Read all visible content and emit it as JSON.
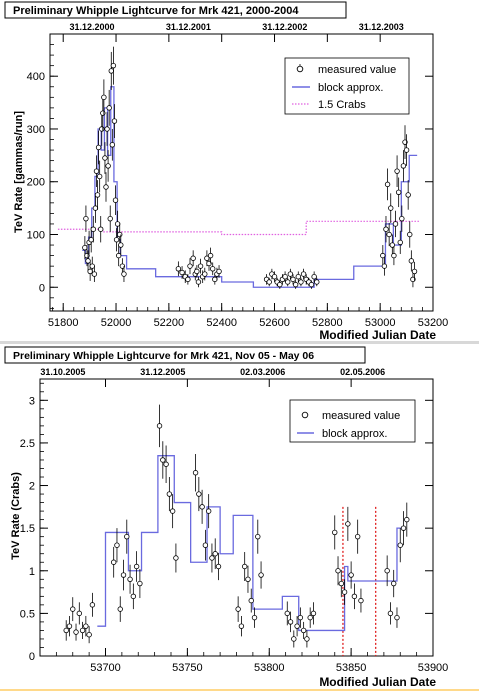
{
  "charts": [
    {
      "title": "Preliminary Whipple Lightcurve for Mrk 421, 2000-2004",
      "top_dates": [
        "31.12.2000",
        "31.12.2001",
        "31.12.2002",
        "31.12.2003"
      ]
    },
    {
      "title": "Preliminary Whipple Lightcurve for Mrk 421, Nov 05 - May 06",
      "top_dates": [
        "31.10.2005",
        "31.12.2005",
        "02.03.2006",
        "02.05.2006"
      ]
    }
  ],
  "chart_data": [
    {
      "type": "scatter",
      "title": "Preliminary Whipple Lightcurve for Mrk 421, 2000-2004",
      "xlabel": "Modified Julian Date",
      "ylabel": "TeV Rate [gammas/run]",
      "xlim": [
        51750,
        53200
      ],
      "ylim": [
        -45,
        480
      ],
      "xticks": [
        51800,
        52000,
        52200,
        52400,
        52600,
        52800,
        53000,
        53200
      ],
      "yticks": [
        0,
        100,
        200,
        300,
        400
      ],
      "top_date_mjd": [
        51909,
        52274,
        52639,
        53004
      ],
      "legend": [
        "measured value",
        "block approx.",
        "1.5 Crabs"
      ],
      "legend_position": "top-right",
      "series": [
        {
          "name": "measured value",
          "kind": "points",
          "x": [
            51882,
            51886,
            51890,
            51894,
            51898,
            51902,
            51906,
            51910,
            51914,
            51918,
            51922,
            51926,
            51930,
            51934,
            51938,
            51942,
            51946,
            51950,
            51954,
            51958,
            51962,
            51966,
            51970,
            51974,
            51978,
            51982,
            51986,
            51990,
            51994,
            51998,
            52002,
            52006,
            52010,
            52014,
            52018,
            52024,
            52030,
            52236,
            52250,
            52262,
            52272,
            52280,
            52292,
            52300,
            52306,
            52312,
            52320,
            52328,
            52336,
            52344,
            52352,
            52358,
            52366,
            52374,
            52382,
            52390,
            52570,
            52580,
            52590,
            52600,
            52610,
            52620,
            52630,
            52640,
            52650,
            52660,
            52670,
            52680,
            52690,
            52700,
            52710,
            52720,
            52730,
            52740,
            52750,
            52760,
            53010,
            53016,
            53022,
            53028,
            53034,
            53040,
            53046,
            53052,
            53058,
            53064,
            53070,
            53076,
            53082,
            53088,
            53094,
            53100,
            53106,
            53112,
            53118,
            53124,
            53130
          ],
          "y": [
            75,
            130,
            60,
            50,
            85,
            30,
            90,
            40,
            110,
            25,
            150,
            220,
            175,
            265,
            210,
            110,
            300,
            330,
            360,
            245,
            190,
            300,
            230,
            340,
            130,
            410,
            270,
            420,
            315,
            165,
            90,
            120,
            60,
            100,
            80,
            40,
            25,
            35,
            28,
            20,
            15,
            40,
            55,
            25,
            30,
            10,
            40,
            20,
            25,
            55,
            45,
            60,
            35,
            15,
            25,
            30,
            15,
            10,
            25,
            20,
            10,
            5,
            15,
            20,
            10,
            25,
            15,
            5,
            20,
            10,
            25,
            15,
            10,
            5,
            20,
            10,
            60,
            40,
            110,
            195,
            100,
            150,
            80,
            60,
            120,
            220,
            180,
            85,
            130,
            230,
            275,
            260,
            175,
            100,
            50,
            15,
            30
          ],
          "err": [
            22,
            25,
            20,
            20,
            22,
            18,
            24,
            18,
            25,
            15,
            28,
            30,
            28,
            32,
            30,
            25,
            32,
            34,
            34,
            30,
            28,
            32,
            30,
            34,
            25,
            36,
            30,
            36,
            32,
            28,
            22,
            25,
            20,
            22,
            20,
            15,
            15,
            14,
            12,
            12,
            10,
            15,
            15,
            12,
            12,
            10,
            14,
            12,
            12,
            15,
            14,
            15,
            12,
            10,
            12,
            12,
            10,
            8,
            10,
            10,
            8,
            8,
            10,
            10,
            8,
            10,
            10,
            8,
            10,
            8,
            10,
            10,
            8,
            8,
            10,
            8,
            20,
            18,
            25,
            30,
            22,
            28,
            20,
            18,
            25,
            30,
            28,
            22,
            25,
            30,
            32,
            30,
            28,
            25,
            20,
            15,
            18
          ]
        },
        {
          "name": "block approx.",
          "kind": "step",
          "x": [
            51872,
            51884,
            51896,
            51908,
            51920,
            51932,
            51944,
            51956,
            51968,
            51980,
            51992,
            52004,
            52016,
            52040,
            52150,
            52400,
            52520,
            52750,
            52900,
            53020,
            53050,
            53080,
            53110,
            53140
          ],
          "y": [
            70,
            45,
            95,
            150,
            210,
            300,
            260,
            340,
            250,
            380,
            200,
            90,
            60,
            35,
            20,
            10,
            0,
            15,
            40,
            120,
            80,
            200,
            250,
            60
          ]
        },
        {
          "name": "1.5 Crabs",
          "kind": "dotted",
          "x": [
            51780,
            51950,
            51950,
            52400,
            52400,
            52720,
            52720,
            53150
          ],
          "y": [
            110,
            110,
            105,
            105,
            100,
            100,
            125,
            125
          ]
        }
      ]
    },
    {
      "type": "scatter",
      "title": "Preliminary Whipple Lightcurve for Mrk 421, Nov 05 - May 06",
      "xlabel": "Modified Julian Date",
      "ylabel": "TeV Rate (Crabs)",
      "xlim": [
        53660,
        53900
      ],
      "ylim": [
        0,
        3.25
      ],
      "xticks": [
        53700,
        53750,
        53800,
        53850,
        53900
      ],
      "yticks": [
        0,
        0.5,
        1,
        1.5,
        2,
        2.5,
        3
      ],
      "top_date_mjd": [
        53674,
        53735,
        53796,
        53857
      ],
      "legend": [
        "measured value",
        "block approx."
      ],
      "legend_position": "top-right",
      "vlines_x": [
        53845,
        53865
      ],
      "series": [
        {
          "name": "measured value",
          "kind": "points",
          "x": [
            53676,
            53678,
            53680,
            53682,
            53684,
            53686,
            53688,
            53690,
            53692,
            53705,
            53707,
            53709,
            53711,
            53713,
            53715,
            53717,
            53719,
            53721,
            53733,
            53735,
            53737,
            53739,
            53741,
            53743,
            53755,
            53757,
            53759,
            53761,
            53763,
            53765,
            53767,
            53769,
            53781,
            53783,
            53785,
            53787,
            53789,
            53791,
            53793,
            53795,
            53811,
            53813,
            53815,
            53817,
            53819,
            53821,
            53823,
            53825,
            53827,
            53840,
            53842,
            53844,
            53846,
            53848,
            53850,
            53852,
            53854,
            53856,
            53872,
            53874,
            53876,
            53878,
            53880,
            53882,
            53884
          ],
          "y": [
            0.3,
            0.35,
            0.55,
            0.28,
            0.5,
            0.3,
            0.35,
            0.25,
            0.6,
            1.1,
            1.3,
            0.55,
            0.95,
            1.4,
            0.9,
            0.7,
            1.05,
            0.85,
            2.7,
            2.3,
            2.25,
            1.9,
            1.7,
            1.15,
            2.15,
            1.9,
            1.75,
            1.3,
            1.7,
            1.15,
            1.2,
            1.05,
            0.55,
            0.35,
            1.05,
            0.9,
            0.65,
            0.45,
            1.4,
            0.95,
            0.5,
            0.4,
            0.2,
            0.35,
            0.45,
            0.3,
            0.2,
            0.45,
            0.5,
            1.45,
            1.0,
            0.85,
            0.75,
            1.55,
            0.95,
            0.7,
            1.4,
            0.65,
            1.0,
            0.5,
            0.85,
            0.45,
            1.3,
            1.5,
            1.6
          ],
          "err": [
            0.12,
            0.12,
            0.14,
            0.1,
            0.13,
            0.1,
            0.12,
            0.1,
            0.14,
            0.18,
            0.2,
            0.15,
            0.18,
            0.2,
            0.17,
            0.15,
            0.18,
            0.17,
            0.25,
            0.22,
            0.22,
            0.2,
            0.2,
            0.17,
            0.22,
            0.2,
            0.2,
            0.18,
            0.2,
            0.17,
            0.18,
            0.16,
            0.15,
            0.12,
            0.17,
            0.16,
            0.14,
            0.12,
            0.2,
            0.16,
            0.14,
            0.12,
            0.1,
            0.12,
            0.12,
            0.1,
            0.1,
            0.12,
            0.13,
            0.2,
            0.17,
            0.16,
            0.15,
            0.2,
            0.16,
            0.15,
            0.2,
            0.14,
            0.18,
            0.13,
            0.16,
            0.12,
            0.2,
            0.2,
            0.2
          ]
        },
        {
          "name": "block approx.",
          "kind": "step",
          "x": [
            53695,
            53700,
            53714,
            53722,
            53732,
            53742,
            53752,
            53762,
            53770,
            53778,
            53790,
            53808,
            53818,
            53832,
            53846,
            53848,
            53868,
            53878,
            53882
          ],
          "y": [
            0.35,
            1.45,
            1.0,
            1.45,
            2.35,
            1.8,
            1.1,
            1.75,
            1.2,
            1.65,
            0.55,
            0.7,
            0.3,
            0.3,
            1.05,
            0.88,
            0.88,
            1.5,
            1.5
          ]
        }
      ]
    }
  ]
}
